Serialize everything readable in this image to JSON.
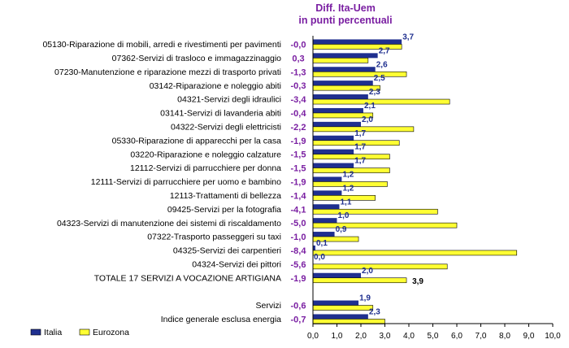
{
  "chart_data": {
    "type": "bar",
    "orientation": "horizontal",
    "title_lines": [
      "Diff. Ita-Uem",
      "in punti percentuali"
    ],
    "xlim": [
      0,
      10
    ],
    "x_ticks": [
      "0,0",
      "1,0",
      "2,0",
      "3,0",
      "4,0",
      "5,0",
      "6,0",
      "7,0",
      "8,0",
      "9,0",
      "10,0"
    ],
    "grid": false,
    "legend_position": "bottom-left",
    "colors": {
      "italia": "#1f2f8f",
      "eurozona": "#ffff33",
      "diff_text": "#7a1fa2"
    },
    "categories": [
      "05130-Riparazione di mobili, arredi e rivestimenti per pavimenti",
      "07362-Servizi di trasloco e immagazzinaggio",
      "07230-Manutenzione e riparazione mezzi di trasporto privati",
      "03142-Riparazione e noleggio abiti",
      "04321-Servizi degli idraulici",
      "03141-Servizi di lavanderia abiti",
      "04322-Servizi degli elettricisti",
      "05330-Riparazione di apparecchi per la casa",
      "03220-Riparazione e noleggio calzature",
      "12112-Servizi di parrucchiere per donna",
      "12111-Servizi di parrucchiere per uomo e bambino",
      "12113-Trattamenti di bellezza",
      "09425-Servizi per la fotografia",
      "04323-Servizi di manutenzione dei sistemi di riscaldamento",
      "07322-Trasporto passeggeri su taxi",
      "04325-Servizi dei carpentieri",
      "04324-Servizi dei pittori",
      "TOTALE 17 SERVIZI A VOCAZIONE ARTIGIANA",
      "",
      "Servizi",
      "Indice generale esclusa energia"
    ],
    "diff_labels": [
      "-0,0",
      "0,3",
      "-1,3",
      "-0,3",
      "-3,4",
      "-0,4",
      "-2,2",
      "-1,9",
      "-1,5",
      "-1,5",
      "-1,9",
      "-1,4",
      "-4,1",
      "-5,0",
      "-1,0",
      "-8,4",
      "-5,6",
      "-1,9",
      "",
      "-0,6",
      "-0,7"
    ],
    "series": [
      {
        "name": "Italia",
        "values": [
          3.7,
          2.7,
          2.6,
          2.5,
          2.3,
          2.1,
          2.0,
          1.7,
          1.7,
          1.7,
          1.2,
          1.2,
          1.1,
          1.0,
          0.9,
          0.1,
          0.0,
          2.0,
          null,
          1.9,
          2.3
        ],
        "labels": [
          "3,7",
          "2,7",
          "2,6",
          "2,5",
          "2,3",
          "2,1",
          "2,0",
          "1,7",
          "1,7",
          "1,7",
          "1,2",
          "1,2",
          "1,1",
          "1,0",
          "0,9",
          "0,1",
          "0,0",
          "2,0",
          "",
          "1,9",
          "2,3"
        ]
      },
      {
        "name": "Eurozona",
        "values": [
          3.7,
          2.3,
          3.9,
          2.8,
          5.7,
          2.5,
          4.2,
          3.6,
          3.2,
          3.2,
          3.1,
          2.6,
          5.2,
          6.0,
          1.9,
          8.5,
          5.6,
          3.9,
          null,
          2.5,
          3.0
        ],
        "labels": [
          "",
          "",
          "",
          "",
          "",
          "",
          "",
          "",
          "",
          "",
          "",
          "",
          "",
          "",
          "",
          "",
          "",
          "3,9",
          "",
          "",
          ""
        ]
      }
    ]
  }
}
